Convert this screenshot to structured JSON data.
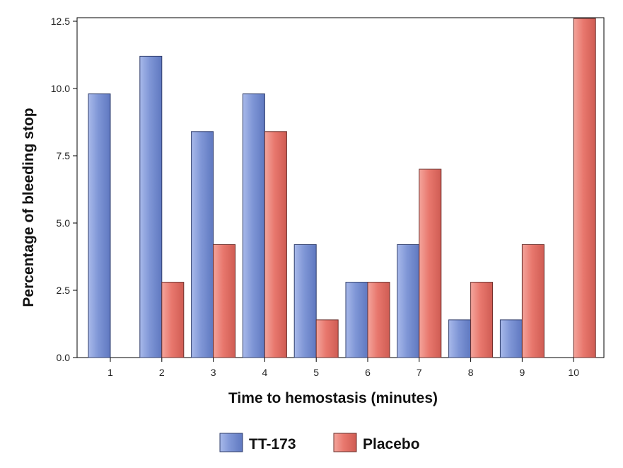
{
  "chart_data": {
    "type": "bar",
    "categories": [
      "1",
      "2",
      "3",
      "4",
      "5",
      "6",
      "7",
      "8",
      "9",
      "10"
    ],
    "series": [
      {
        "name": "TT-173",
        "color": "#7f96d6",
        "values": [
          9.8,
          11.2,
          8.4,
          9.8,
          4.2,
          2.8,
          4.2,
          1.4,
          1.4,
          0
        ]
      },
      {
        "name": "Placebo",
        "color": "#e8776d",
        "values": [
          0,
          2.8,
          4.2,
          8.4,
          1.4,
          2.8,
          7.0,
          2.8,
          4.2,
          12.6
        ]
      }
    ],
    "xlabel": "Time to hemostasis (minutes)",
    "ylabel": "Percentage of bleeding stop",
    "yticks": [
      "0.0",
      "2.5",
      "5.0",
      "7.5",
      "10.0",
      "12.5"
    ],
    "ylim": [
      0,
      12.5
    ],
    "grid": false,
    "legend_position": "bottom"
  }
}
